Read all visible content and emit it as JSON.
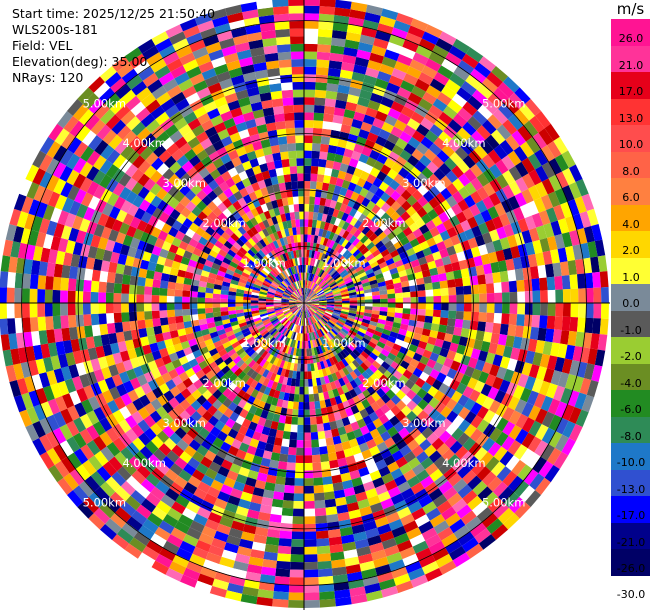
{
  "info": {
    "start_time": "Start time: 2025/12/25 21:50:40",
    "site": "WLS200s-181",
    "field": "Field: VEL",
    "elevation": "Elevation(deg): 35.00",
    "nrays": "NRays: 120"
  },
  "colorbar": {
    "unit": "m/s",
    "labels": [
      "26.0",
      "21.0",
      "17.0",
      "13.0",
      "10.0",
      "8.0",
      "6.0",
      "4.0",
      "2.0",
      "1.0",
      "0.0",
      "-1.0",
      "-2.0",
      "-4.0",
      "-6.0",
      "-8.0",
      "-10.0",
      "-13.0",
      "-17.0",
      "-21.0",
      "-26.0",
      "-30.0"
    ],
    "colors": [
      "#ff1493",
      "#ff3399",
      "#e6001a",
      "#ff3333",
      "#ff4d4d",
      "#ff6347",
      "#ff8040",
      "#ffa500",
      "#ffd700",
      "#ffff33",
      "#7a8a99",
      "#5a5a5a",
      "#9acd32",
      "#6b8e23",
      "#228b22",
      "#2e8b57",
      "#1e78c8",
      "#3050d0",
      "#0000ff",
      "#00008b",
      "#000066"
    ]
  },
  "chart_data": {
    "type": "polar_ppi",
    "field": "VEL",
    "unit": "m/s",
    "elevation_deg": 35.0,
    "n_rays": 120,
    "range_rings_km": [
      1,
      2,
      3,
      4,
      5
    ],
    "ring_labels": [
      "1.00km",
      "2.00km",
      "3.00km",
      "4.00km",
      "5.00km"
    ]
  }
}
